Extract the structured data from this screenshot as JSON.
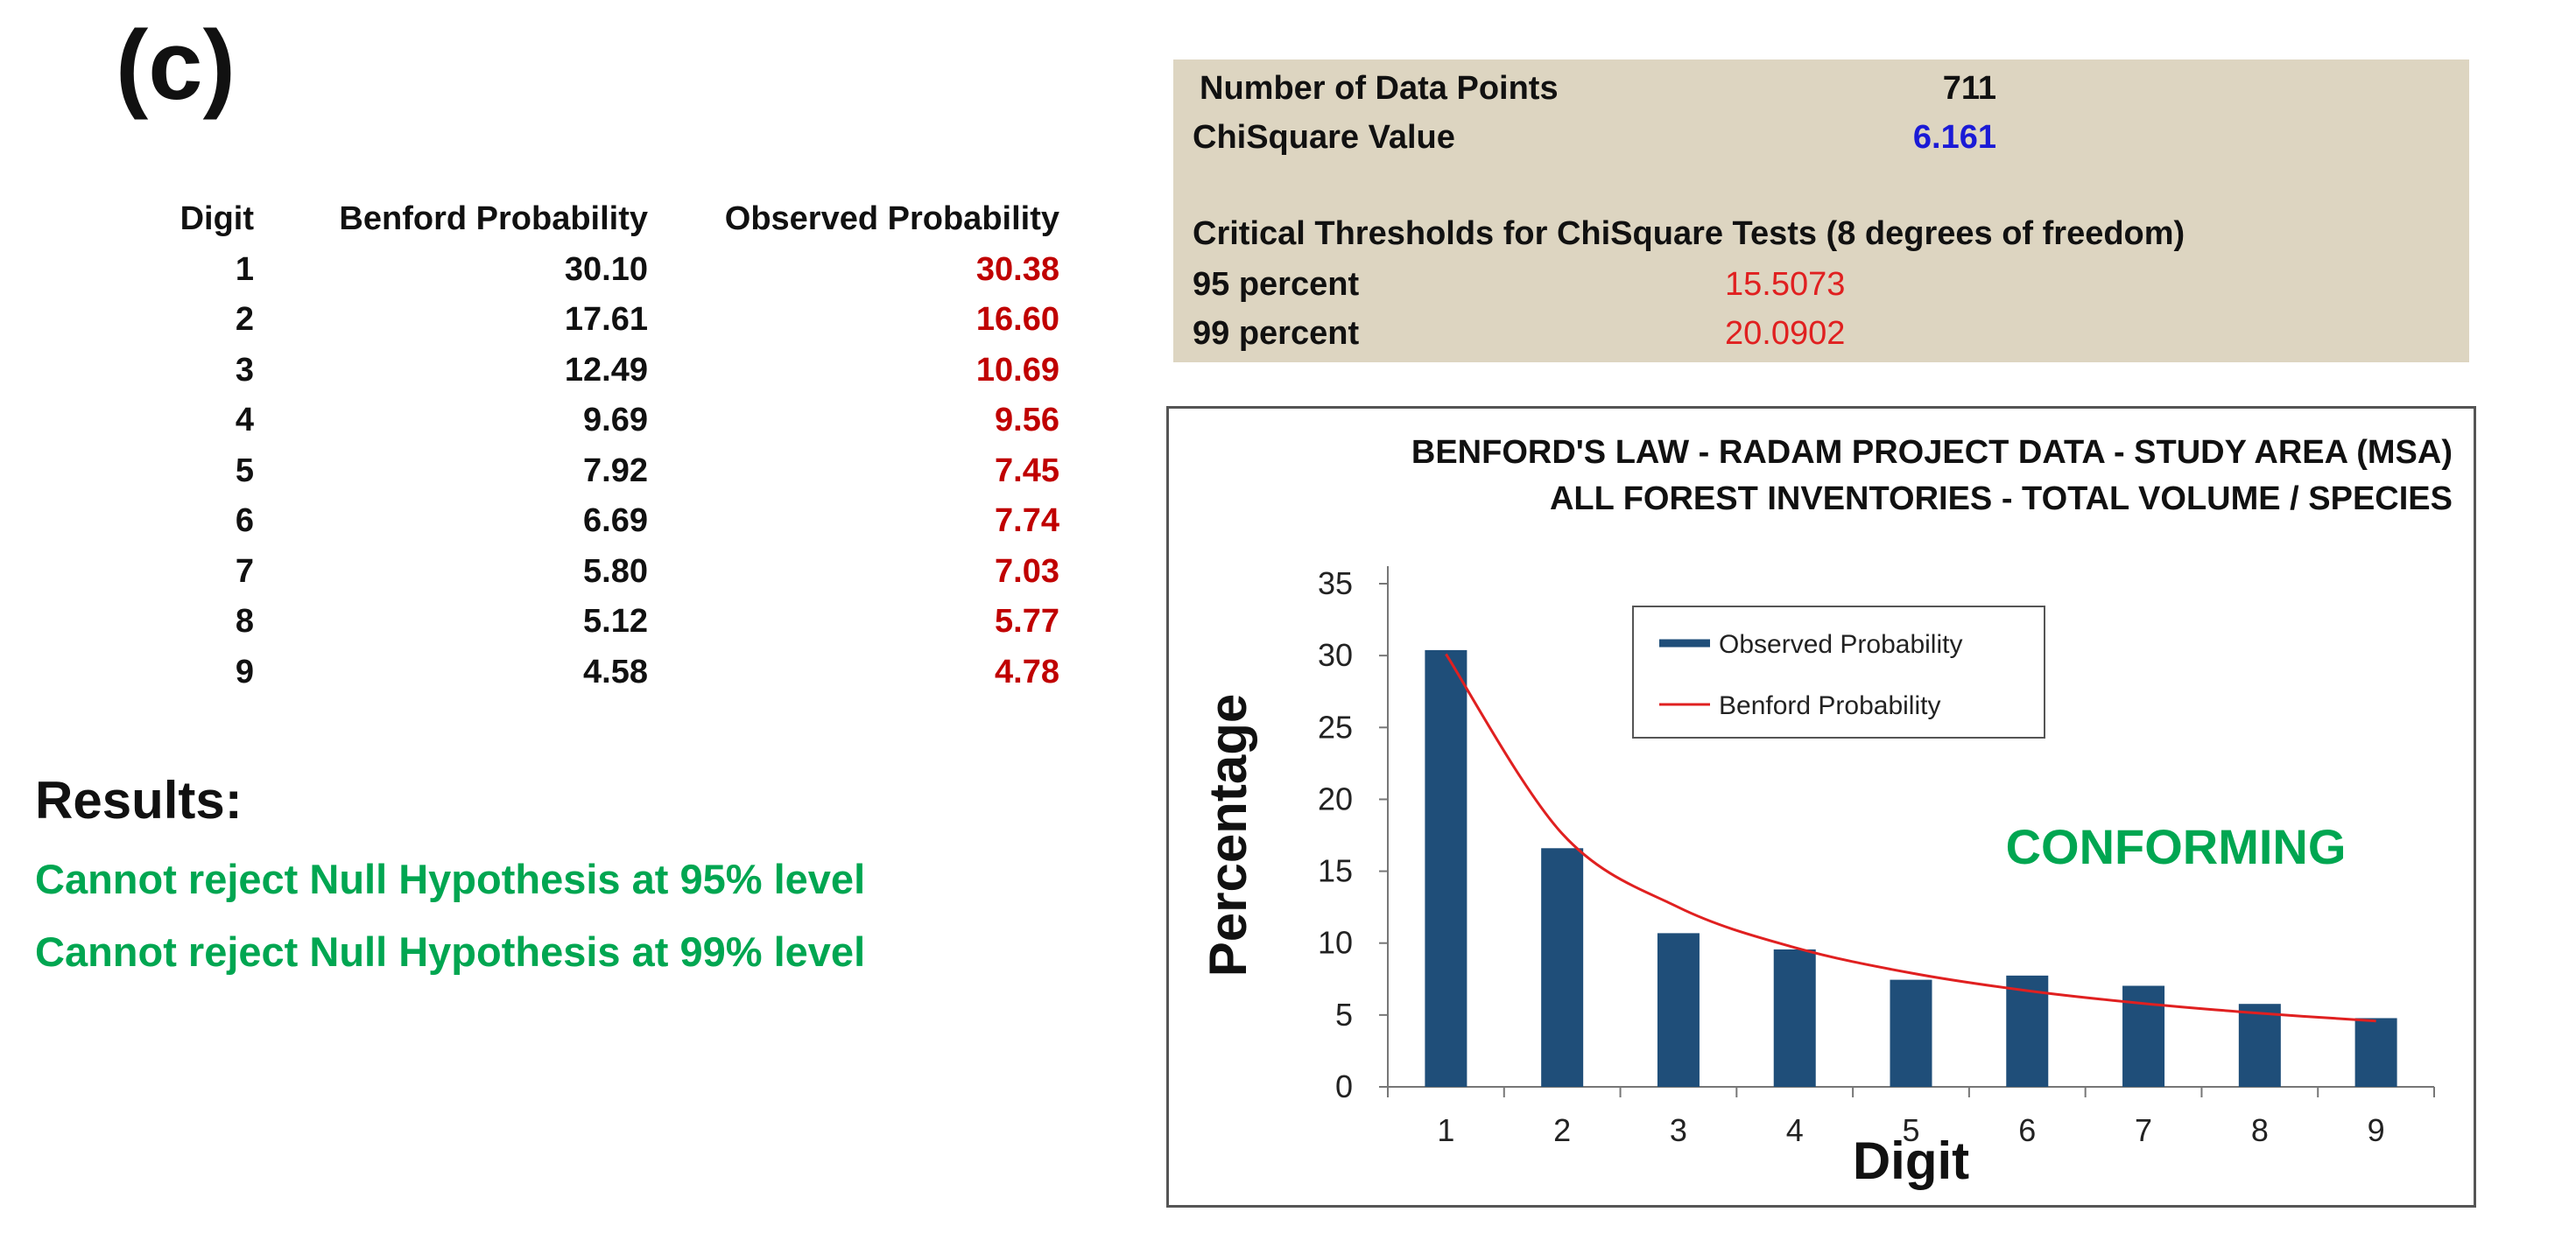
{
  "panel_label": "(c)",
  "table": {
    "headers": [
      "Digit",
      "Benford Probability",
      "Observed Probability"
    ],
    "rows": [
      [
        "1",
        "30.10",
        "30.38"
      ],
      [
        "2",
        "17.61",
        "16.60"
      ],
      [
        "3",
        "12.49",
        "10.69"
      ],
      [
        "4",
        "9.69",
        "9.56"
      ],
      [
        "5",
        "7.92",
        "7.45"
      ],
      [
        "6",
        "6.69",
        "7.74"
      ],
      [
        "7",
        "5.80",
        "7.03"
      ],
      [
        "8",
        "5.12",
        "5.77"
      ],
      [
        "9",
        "4.58",
        "4.78"
      ]
    ]
  },
  "results": {
    "title": "Results:",
    "lines": [
      "Cannot reject Null Hypothesis at 95% level",
      "Cannot reject Null Hypothesis at 99% level"
    ]
  },
  "stats": {
    "data_points_label": "Number of Data Points",
    "data_points_value": "711",
    "chisquare_label": "ChiSquare Value",
    "chisquare_value": "6.161",
    "thresholds_title": "Critical Thresholds for ChiSquare Tests (8 degrees of freedom)",
    "p95_label": "95 percent",
    "p95_value": "15.5073",
    "p99_label": "99 percent",
    "p99_value": "20.0902"
  },
  "colors": {
    "bar": "#1f4e79",
    "line": "#e02020",
    "conforming": "#00a651",
    "observed_text": "#c00000",
    "stats_bg": "#ddd5c1"
  },
  "chart_data": {
    "type": "bar",
    "title": [
      "BENFORD'S LAW - RADAM PROJECT DATA - STUDY AREA (MSA)",
      "ALL FOREST INVENTORIES - TOTAL VOLUME / SPECIES"
    ],
    "xlabel": "Digit",
    "ylabel": "Percentage",
    "categories": [
      "1",
      "2",
      "3",
      "4",
      "5",
      "6",
      "7",
      "8",
      "9"
    ],
    "ylim": [
      0,
      35
    ],
    "yticks": [
      0,
      5,
      10,
      15,
      20,
      25,
      30,
      35
    ],
    "grid": false,
    "legend_position": "top-center",
    "annotation": "CONFORMING",
    "series": [
      {
        "name": "Observed Probability",
        "kind": "bar",
        "values": [
          30.38,
          16.6,
          10.69,
          9.56,
          7.45,
          7.74,
          7.03,
          5.77,
          4.78
        ]
      },
      {
        "name": "Benford Probability",
        "kind": "line",
        "values": [
          30.1,
          17.61,
          12.49,
          9.69,
          7.92,
          6.69,
          5.8,
          5.12,
          4.58
        ]
      }
    ]
  }
}
